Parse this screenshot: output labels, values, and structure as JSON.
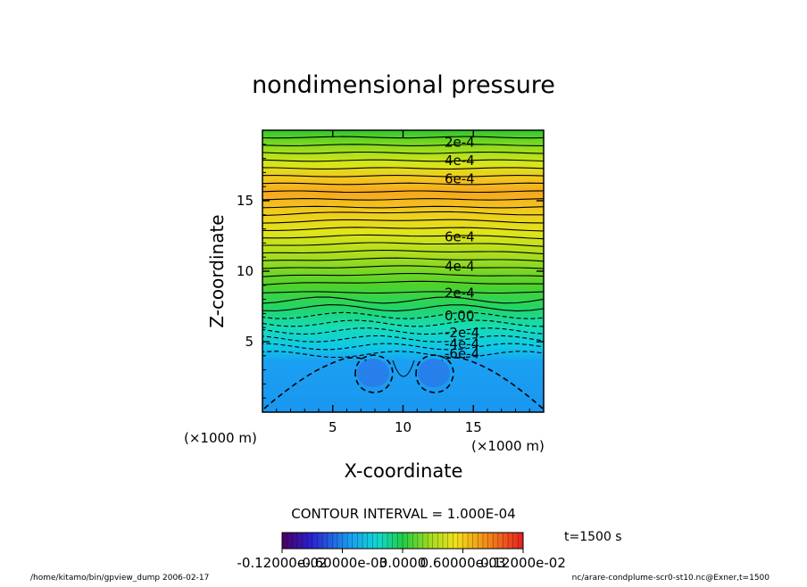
{
  "chart_data": {
    "type": "heatmap",
    "title": "nondimensional pressure",
    "xlabel": "X-coordinate",
    "ylabel": "Z-coordinate",
    "x_unit": "(×1000 m)",
    "y_unit": "(×1000 m)",
    "xlim": [
      0,
      20
    ],
    "ylim": [
      0,
      20
    ],
    "xticks": [
      "5",
      "10",
      "15"
    ],
    "yticks": [
      "5",
      "10",
      "15"
    ],
    "contour_interval_text": "CONTOUR INTERVAL = 1.000E-04",
    "time_label": "t=1500 s",
    "contour_labels": [
      {
        "text": "2e-4",
        "z": 19.2
      },
      {
        "text": "4e-4",
        "z": 17.9
      },
      {
        "text": "6e-4",
        "z": 16.6
      },
      {
        "text": "6e-4",
        "z": 12.5
      },
      {
        "text": "4e-4",
        "z": 10.4
      },
      {
        "text": "2e-4",
        "z": 8.5
      },
      {
        "text": "0.00",
        "z": 6.9
      },
      {
        "text": "-2e-4",
        "z": 5.7
      },
      {
        "text": "-4e-4",
        "z": 4.9
      },
      {
        "text": "-6e-4",
        "z": 4.2
      }
    ],
    "colorbar": {
      "range": [
        -0.0012,
        0.0012
      ],
      "labels": [
        "-0.12000e-02",
        "-0.60000e-03",
        "0.0000",
        "0.60000e-03",
        "0.12000e-02"
      ]
    }
  },
  "footer": {
    "left": "/home/kitamo/bin/gpview_dump  2006-02-17",
    "right": "nc/arare-condplume-scr0-st10.nc@Exner,t=1500"
  }
}
